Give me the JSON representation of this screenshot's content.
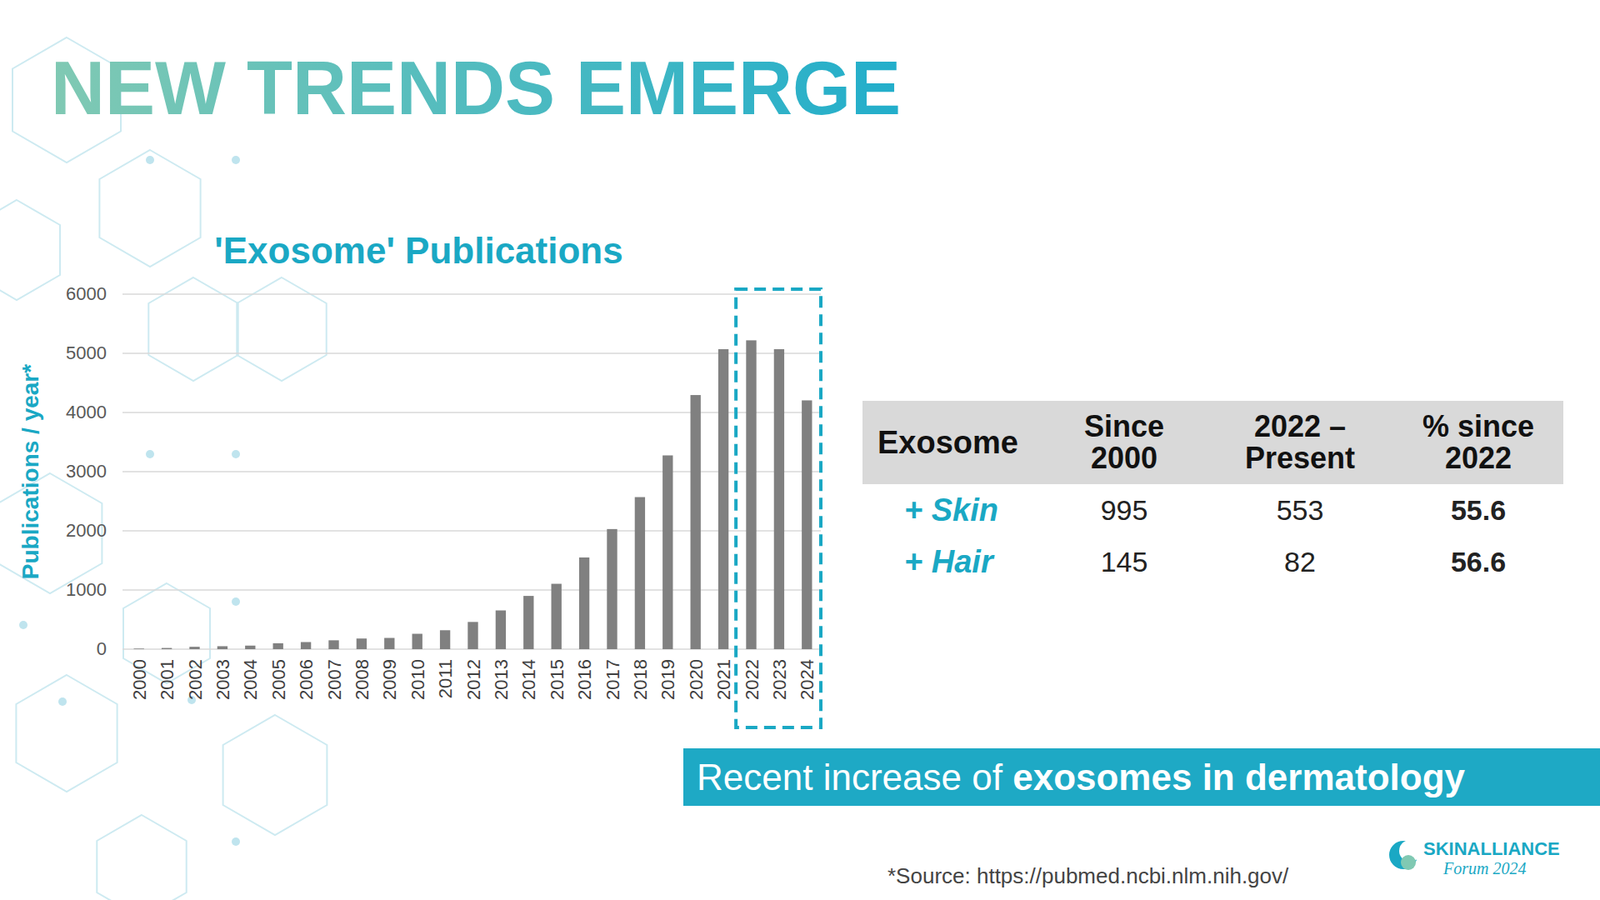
{
  "title": "NEW TRENDS EMERGE",
  "chart_data": {
    "type": "bar",
    "title": "'Exosome' Publications",
    "y_label": "Publications / year*",
    "categories": [
      "2000",
      "2001",
      "2002",
      "2003",
      "2004",
      "2005",
      "2006",
      "2007",
      "2008",
      "2009",
      "2010",
      "2011",
      "2012",
      "2013",
      "2014",
      "2015",
      "2016",
      "2017",
      "2018",
      "2019",
      "2020",
      "2021",
      "2022",
      "2023",
      "2024"
    ],
    "values": [
      10,
      20,
      40,
      50,
      60,
      100,
      120,
      150,
      180,
      190,
      260,
      320,
      460,
      655,
      900,
      1105,
      1550,
      2030,
      2570,
      3275,
      4295,
      5070,
      5220,
      5070,
      4205
    ],
    "color": "#808080",
    "ylim": [
      0,
      6000
    ],
    "yticks": [
      0,
      1000,
      2000,
      3000,
      4000,
      5000,
      6000
    ],
    "grid": true
  },
  "table": {
    "header": [
      "Exosome",
      "Since 2000",
      "2022 – Present",
      "% since 2022"
    ],
    "rows": [
      [
        "+ Skin",
        995,
        553,
        55.6
      ],
      [
        "+ Hair",
        145,
        82,
        56.6
      ]
    ]
  },
  "banner": {
    "text": "Recent increase of",
    "emphasis": "exosomes in dermatology"
  },
  "source": "*Source: https://pubmed.ncbi.nlm.nih.gov/",
  "logo": {
    "name": "SKINALLIANCE",
    "subtitle": "Forum 2024"
  }
}
